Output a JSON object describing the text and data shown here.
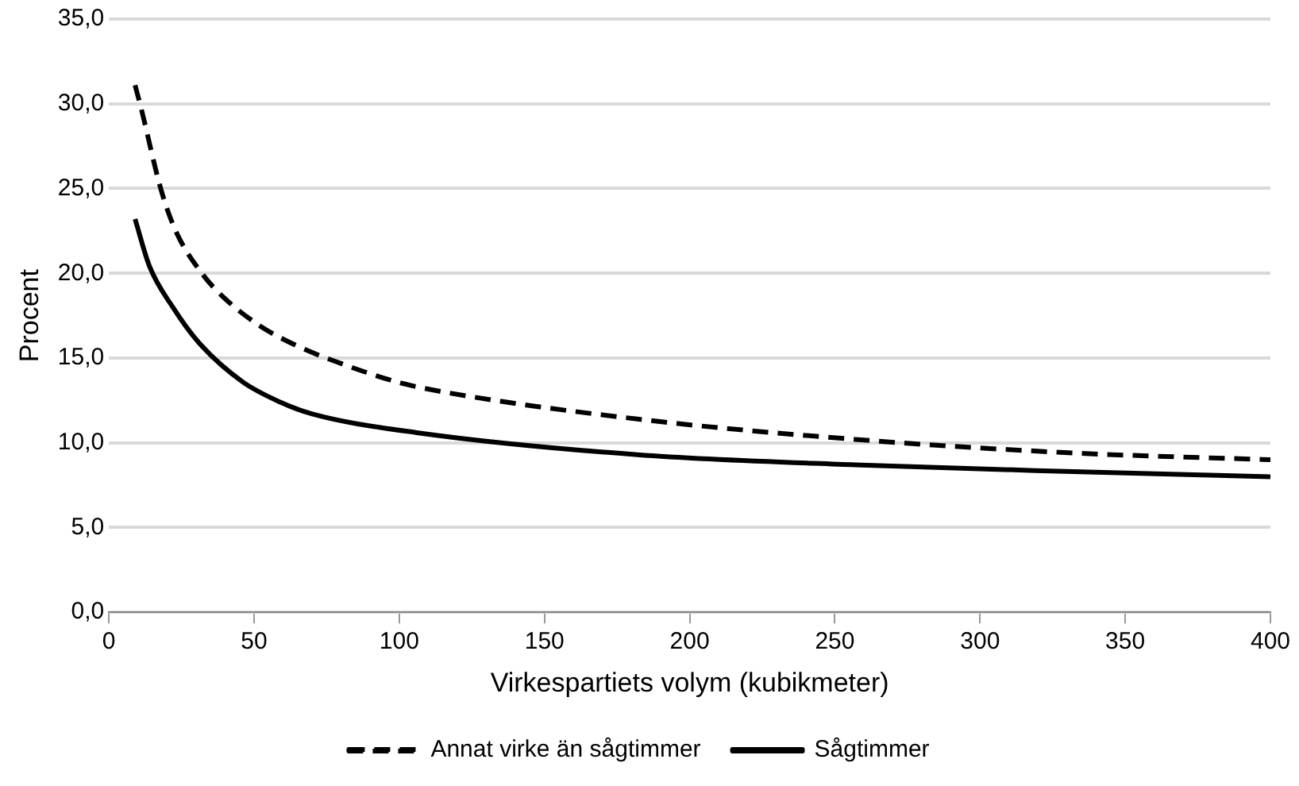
{
  "chart_data": {
    "type": "line",
    "xlabel": "Virkespartiets volym (kubikmeter)",
    "ylabel": "Procent",
    "xlim": [
      0,
      400
    ],
    "xticks": [
      0,
      50,
      100,
      150,
      200,
      250,
      300,
      350,
      400
    ],
    "ylim": [
      0,
      35
    ],
    "yticks": [
      {
        "value": 0,
        "label": "0,0"
      },
      {
        "value": 5,
        "label": "5,0"
      },
      {
        "value": 10,
        "label": "10,0"
      },
      {
        "value": 15,
        "label": "15,0"
      },
      {
        "value": 20,
        "label": "20,0"
      },
      {
        "value": 25,
        "label": "25,0"
      },
      {
        "value": 30,
        "label": "30,0"
      },
      {
        "value": 35,
        "label": "35,0"
      }
    ],
    "grid": "y",
    "legend": "bottom",
    "marker": "none",
    "series": [
      {
        "name": "Annat virke än sågtimmer",
        "color": "#000000",
        "line_style": "dashed",
        "x": [
          9,
          11,
          18,
          23,
          32,
          40,
          52,
          65,
          78,
          99,
          112,
          182,
          257,
          332,
          400
        ],
        "values": [
          31.1,
          29.8,
          24.9,
          22.5,
          20.0,
          18.5,
          16.9,
          15.7,
          14.8,
          13.6,
          13.1,
          11.4,
          10.2,
          9.4,
          9.0
        ]
      },
      {
        "name": "Sågtimmer",
        "color": "#000000",
        "line_style": "solid",
        "x": [
          9,
          14,
          22,
          31,
          46,
          59,
          70,
          106,
          182,
          257,
          332,
          400
        ],
        "values": [
          23.2,
          20.4,
          18.0,
          15.9,
          13.6,
          12.4,
          11.7,
          10.6,
          9.3,
          8.7,
          8.3,
          8.0
        ]
      }
    ]
  }
}
